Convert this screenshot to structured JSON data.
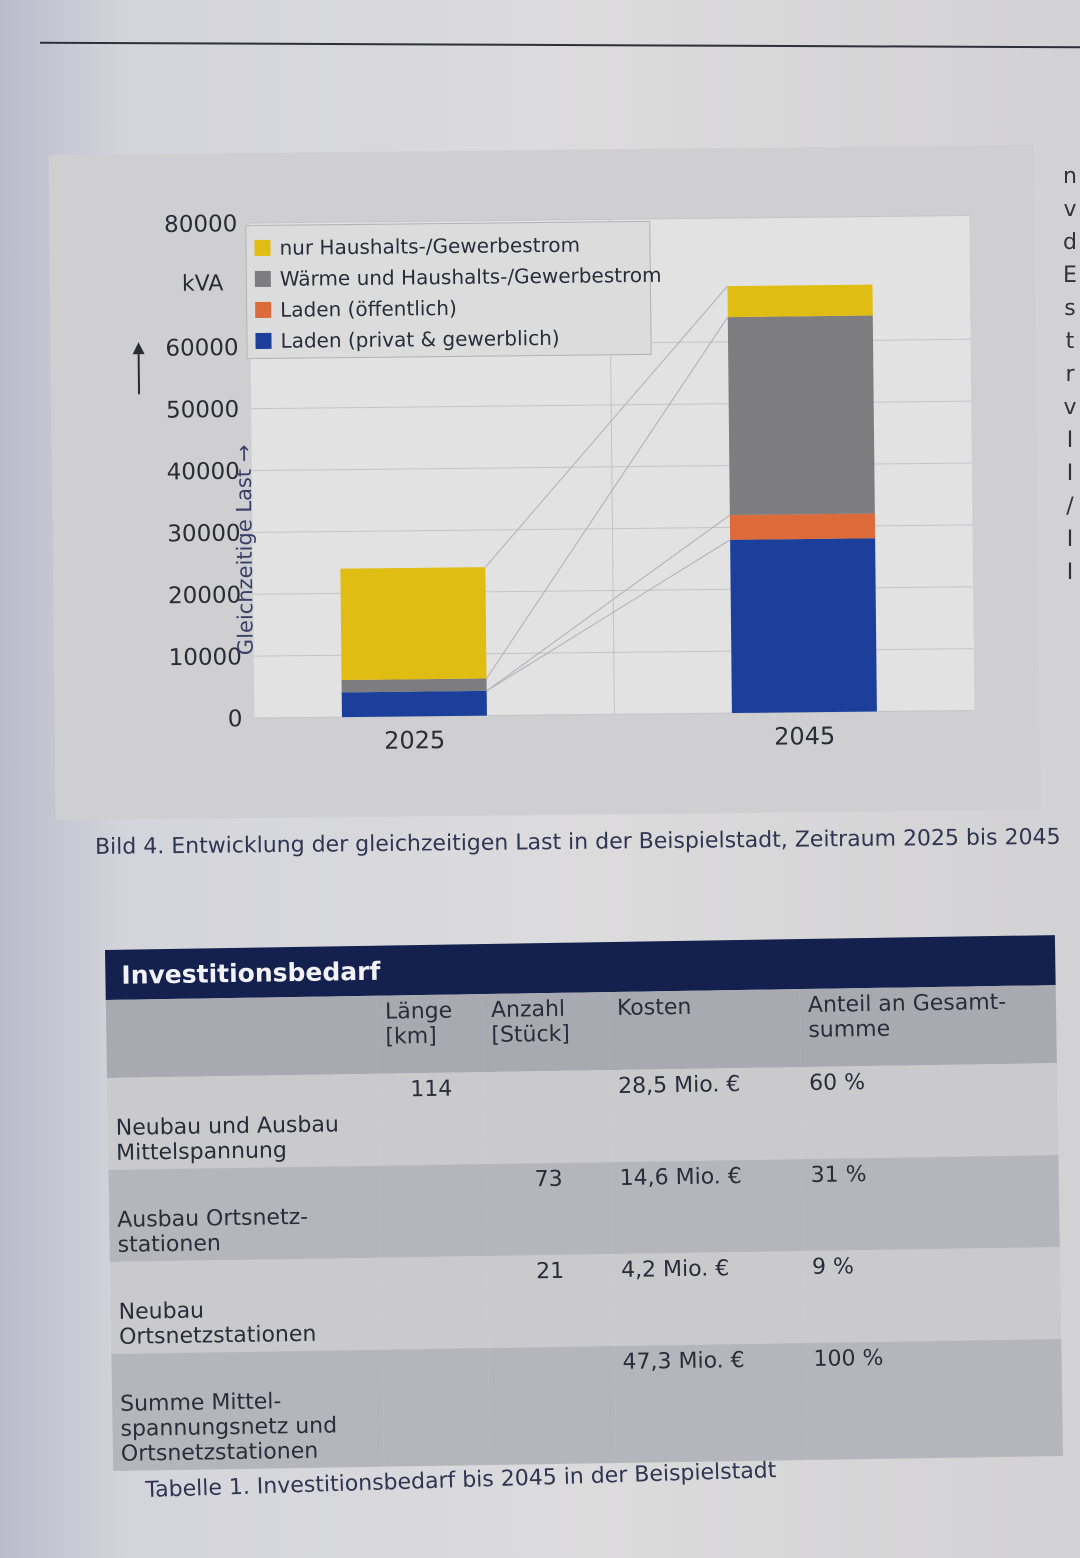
{
  "right_margin_letters": [
    "n",
    "v",
    "d",
    "E",
    "s",
    "t",
    "r",
    "v",
    "I",
    "I",
    "/",
    "I",
    "I"
  ],
  "chart_data": {
    "type": "bar",
    "stacked": true,
    "title": "",
    "ylabel": "Gleichzeitige Last",
    "yunit": "kVA",
    "categories": [
      "2025",
      "2045"
    ],
    "ylim": [
      0,
      80000
    ],
    "yticks": [
      "0",
      "10000",
      "20000",
      "30000",
      "40000",
      "50000",
      "60000",
      "80000"
    ],
    "yticks_values": [
      0,
      10000,
      20000,
      30000,
      40000,
      50000,
      60000,
      80000
    ],
    "legend_position": "top-left",
    "series": [
      {
        "name": "Laden (privat & gewerblich)",
        "color": "#1b3f9a",
        "values": [
          4000,
          28000
        ]
      },
      {
        "name": "Laden (öffentlich)",
        "color": "#dd6b3a",
        "values": [
          0,
          4000
        ]
      },
      {
        "name": "Wärme und  Haushalts-/Gewerbestrom",
        "color": "#7d7d80",
        "values": [
          2000,
          32000
        ]
      },
      {
        "name": "nur Haushalts-/Gewerbestrom",
        "color": "#e0bd12",
        "values": [
          18000,
          5000
        ]
      }
    ],
    "legend_order": [
      "nur Haushalts-/Gewerbestrom",
      "Wärme und  Haushalts-/Gewerbestrom",
      "Laden (öffentlich)",
      "Laden (privat & gewerblich)"
    ]
  },
  "figure_caption": "Bild 4. Entwicklung der gleichzeitigen Last in der Beispielstadt, Zeitraum 2025 bis 2045",
  "table": {
    "title": "Investitionsbedarf",
    "headers": [
      "",
      "Länge [km]",
      "Anzahl [Stück]",
      "Kosten",
      "Anteil an Gesamt-summe"
    ],
    "rows": [
      {
        "label": "Neubau und Ausbau Mittelspannung",
        "laenge": "114",
        "anzahl": "",
        "kosten": "28,5 Mio. €",
        "anteil": "60 %"
      },
      {
        "label": "Ausbau Ortsnetz-stationen",
        "laenge": "",
        "anzahl": "73",
        "kosten": "14,6 Mio. €",
        "anteil": "31 %"
      },
      {
        "label": "Neubau Ortsnetzstationen",
        "laenge": "",
        "anzahl": "21",
        "kosten": "4,2 Mio. €",
        "anteil": "9 %"
      },
      {
        "label": "Summe Mittel-spannungsnetz und Ortsnetzstationen",
        "laenge": "",
        "anzahl": "",
        "kosten": "47,3 Mio. €",
        "anteil": "100 %"
      }
    ],
    "caption": "Tabelle 1. Investitionsbedarf bis 2045 in der Beispielstadt"
  }
}
